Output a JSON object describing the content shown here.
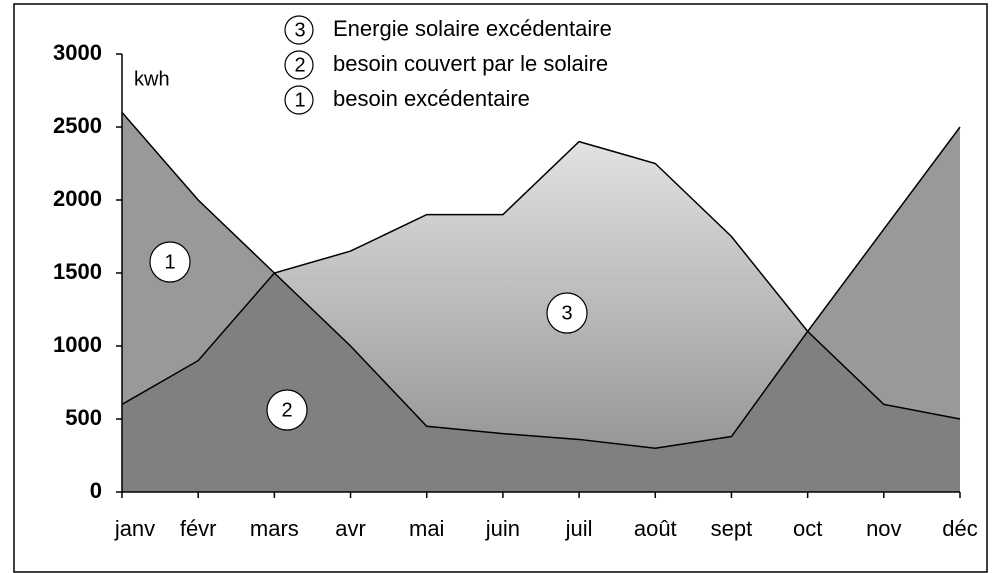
{
  "chart_data": {
    "type": "area",
    "unit_label": "kwh",
    "categories": [
      "janv",
      "févr",
      "mars",
      "avr",
      "mai",
      "juin",
      "juil",
      "août",
      "sept",
      "oct",
      "nov",
      "déc"
    ],
    "series": [
      {
        "color": "#999999",
        "values": [
          2600,
          2000,
          1500,
          1000,
          450,
          400,
          360,
          300,
          380,
          1100,
          1800,
          2500
        ]
      },
      {
        "color": "#dddddd",
        "values": [
          600,
          900,
          1500,
          1650,
          1900,
          1900,
          2400,
          2250,
          1750,
          1100,
          600,
          500
        ]
      }
    ],
    "overlap_color": "#808080",
    "legend": [
      {
        "number": "3",
        "label": "Energie solaire excédentaire"
      },
      {
        "number": "2",
        "label": "besoin couvert par le solaire"
      },
      {
        "number": "1",
        "label": "besoin excédentaire"
      }
    ],
    "region_labels": [
      "1",
      "2",
      "3"
    ],
    "ylim": [
      0,
      3000
    ],
    "yticks": [
      0,
      500,
      1000,
      1500,
      2000,
      2500,
      3000
    ]
  }
}
